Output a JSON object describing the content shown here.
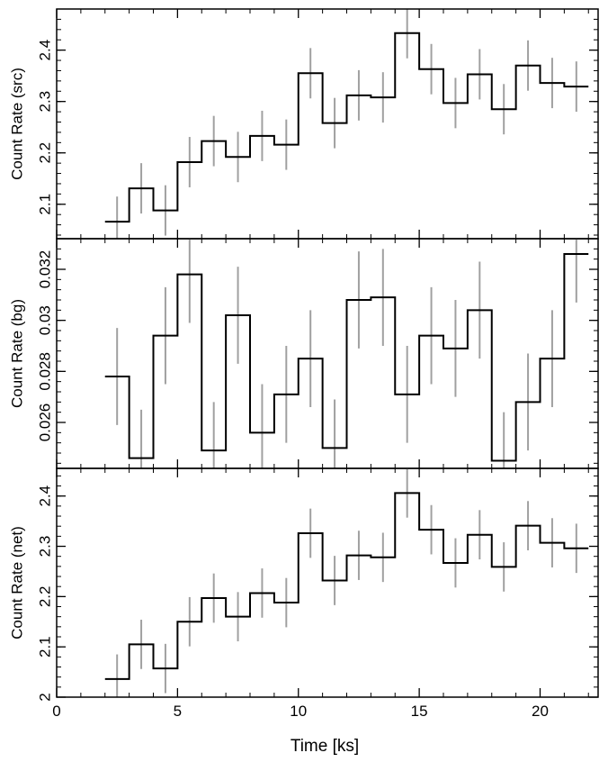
{
  "chart_data": {
    "type": "line",
    "style": "step",
    "xlabel": "Time [ks]",
    "xlim": [
      0,
      22.4
    ],
    "xticks": [
      0,
      5,
      10,
      15,
      20
    ],
    "x_tick_labels": [
      "0",
      "5",
      "10",
      "15",
      "20"
    ],
    "bin_edges": [
      2,
      3,
      4,
      5,
      6,
      7,
      8,
      9,
      10,
      11,
      12,
      13,
      14,
      15,
      16,
      17,
      18,
      19,
      20,
      21,
      22
    ],
    "error_bar_x": [
      2.5,
      3.5,
      4.5,
      5.5,
      6.5,
      7.5,
      8.5,
      9.5,
      10.5,
      11.5,
      12.5,
      13.5,
      14.5,
      15.5,
      16.5,
      17.5,
      18.5,
      19.5,
      20.5,
      21.5
    ],
    "colors": {
      "line": "#000000",
      "error_bars": "#a0a0a0",
      "axes": "#000000"
    },
    "panels": [
      {
        "ylabel": "Count Rate (src)",
        "ylim": [
          2.033,
          2.48
        ],
        "yticks": [
          2.1,
          2.2,
          2.3,
          2.4
        ],
        "ytick_labels": [
          "2.1",
          "2.2",
          "2.3",
          "2.4"
        ],
        "values": [
          2.066,
          2.131,
          2.088,
          2.182,
          2.223,
          2.192,
          2.233,
          2.216,
          2.355,
          2.258,
          2.312,
          2.308,
          2.433,
          2.363,
          2.297,
          2.353,
          2.285,
          2.37,
          2.336,
          2.329
        ],
        "errors": [
          0.049,
          0.049,
          0.049,
          0.049,
          0.049,
          0.049,
          0.049,
          0.049,
          0.049,
          0.049,
          0.049,
          0.049,
          0.049,
          0.049,
          0.049,
          0.049,
          0.049,
          0.049,
          0.049,
          0.049
        ]
      },
      {
        "ylabel": "Count Rate (bg)",
        "ylim": [
          0.0242,
          0.0332
        ],
        "yticks": [
          0.026,
          0.028,
          0.03,
          0.032
        ],
        "ytick_labels": [
          "0.026",
          "0.028",
          "0.03",
          "0.032"
        ],
        "values": [
          0.0278,
          0.0246,
          0.0294,
          0.0318,
          0.0249,
          0.0302,
          0.0256,
          0.0271,
          0.0285,
          0.025,
          0.0308,
          0.0309,
          0.0271,
          0.0294,
          0.0289,
          0.0304,
          0.0245,
          0.0268,
          0.0285,
          0.0326
        ],
        "errors": [
          0.0019,
          0.0019,
          0.0019,
          0.0019,
          0.0019,
          0.0019,
          0.0019,
          0.0019,
          0.0019,
          0.0019,
          0.0019,
          0.0019,
          0.0019,
          0.0019,
          0.0019,
          0.0019,
          0.0019,
          0.0019,
          0.0019,
          0.0019
        ]
      },
      {
        "ylabel": "Count Rate (net)",
        "ylim": [
          2.0,
          2.455
        ],
        "yticks": [
          2.0,
          2.1,
          2.2,
          2.3,
          2.4
        ],
        "ytick_labels": [
          "2",
          "2.1",
          "2.2",
          "2.3",
          "2.4"
        ],
        "values": [
          2.036,
          2.105,
          2.057,
          2.15,
          2.197,
          2.16,
          2.207,
          2.188,
          2.326,
          2.232,
          2.282,
          2.278,
          2.406,
          2.333,
          2.267,
          2.323,
          2.259,
          2.341,
          2.307,
          2.296
        ],
        "errors": [
          0.049,
          0.049,
          0.049,
          0.049,
          0.049,
          0.049,
          0.049,
          0.049,
          0.049,
          0.049,
          0.049,
          0.049,
          0.049,
          0.049,
          0.049,
          0.049,
          0.049,
          0.049,
          0.049,
          0.049
        ]
      }
    ]
  }
}
